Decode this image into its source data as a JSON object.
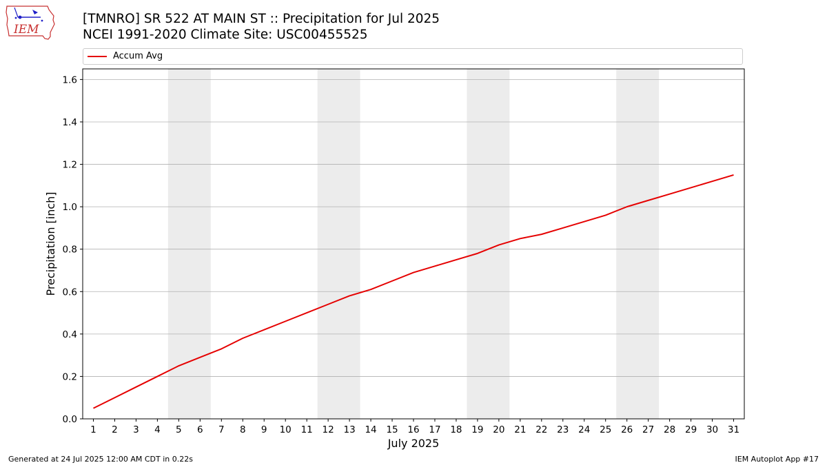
{
  "header": {
    "title_line1": "[TMNRO] SR 522 AT MAIN ST :: Precipitation for Jul 2025",
    "title_line2": "NCEI 1991-2020 Climate Site: USC00455525"
  },
  "logo": {
    "text": "IEM",
    "icon": "iem-iowa-logo"
  },
  "footer": {
    "generated": "Generated at 24 Jul 2025 12:00 AM CDT in 0.22s",
    "app": "IEM Autoplot App #17"
  },
  "colors": {
    "series": "#e50000",
    "weekend_band": "#ececec",
    "grid": "#b0b0b0"
  },
  "chart_data": {
    "type": "line",
    "title": "[TMNRO] SR 522 AT MAIN ST :: Precipitation for Jul 2025",
    "subtitle": "NCEI 1991-2020 Climate Site: USC00455525",
    "xlabel": "July 2025",
    "ylabel": "Precipitation [inch]",
    "x": [
      1,
      2,
      3,
      4,
      5,
      6,
      7,
      8,
      9,
      10,
      11,
      12,
      13,
      14,
      15,
      16,
      17,
      18,
      19,
      20,
      21,
      22,
      23,
      24,
      25,
      26,
      27,
      28,
      29,
      30,
      31
    ],
    "xticks": [
      "1",
      "2",
      "3",
      "4",
      "5",
      "6",
      "7",
      "8",
      "9",
      "10",
      "11",
      "12",
      "13",
      "14",
      "15",
      "16",
      "17",
      "18",
      "19",
      "20",
      "21",
      "22",
      "23",
      "24",
      "25",
      "26",
      "27",
      "28",
      "29",
      "30",
      "31"
    ],
    "xlim": [
      0.5,
      31.5
    ],
    "ylim": [
      0,
      1.65
    ],
    "yticks": [
      "0.0",
      "0.2",
      "0.4",
      "0.6",
      "0.8",
      "1.0",
      "1.2",
      "1.4",
      "1.6"
    ],
    "ytick_values": [
      0,
      0.2,
      0.4,
      0.6,
      0.8,
      1.0,
      1.2,
      1.4,
      1.6
    ],
    "grid": "y-major",
    "legend": "top-left",
    "weekend_bands": [
      [
        4.5,
        6.5
      ],
      [
        11.5,
        13.5
      ],
      [
        18.5,
        20.5
      ],
      [
        25.5,
        27.5
      ]
    ],
    "series": [
      {
        "name": "Accum Avg",
        "values": [
          0.05,
          0.1,
          0.15,
          0.2,
          0.25,
          0.29,
          0.33,
          0.38,
          0.42,
          0.46,
          0.5,
          0.54,
          0.58,
          0.61,
          0.65,
          0.69,
          0.72,
          0.75,
          0.78,
          0.82,
          0.85,
          0.87,
          0.9,
          0.93,
          0.96,
          1.0,
          1.03,
          1.06,
          1.09,
          1.12,
          1.15
        ]
      }
    ]
  }
}
